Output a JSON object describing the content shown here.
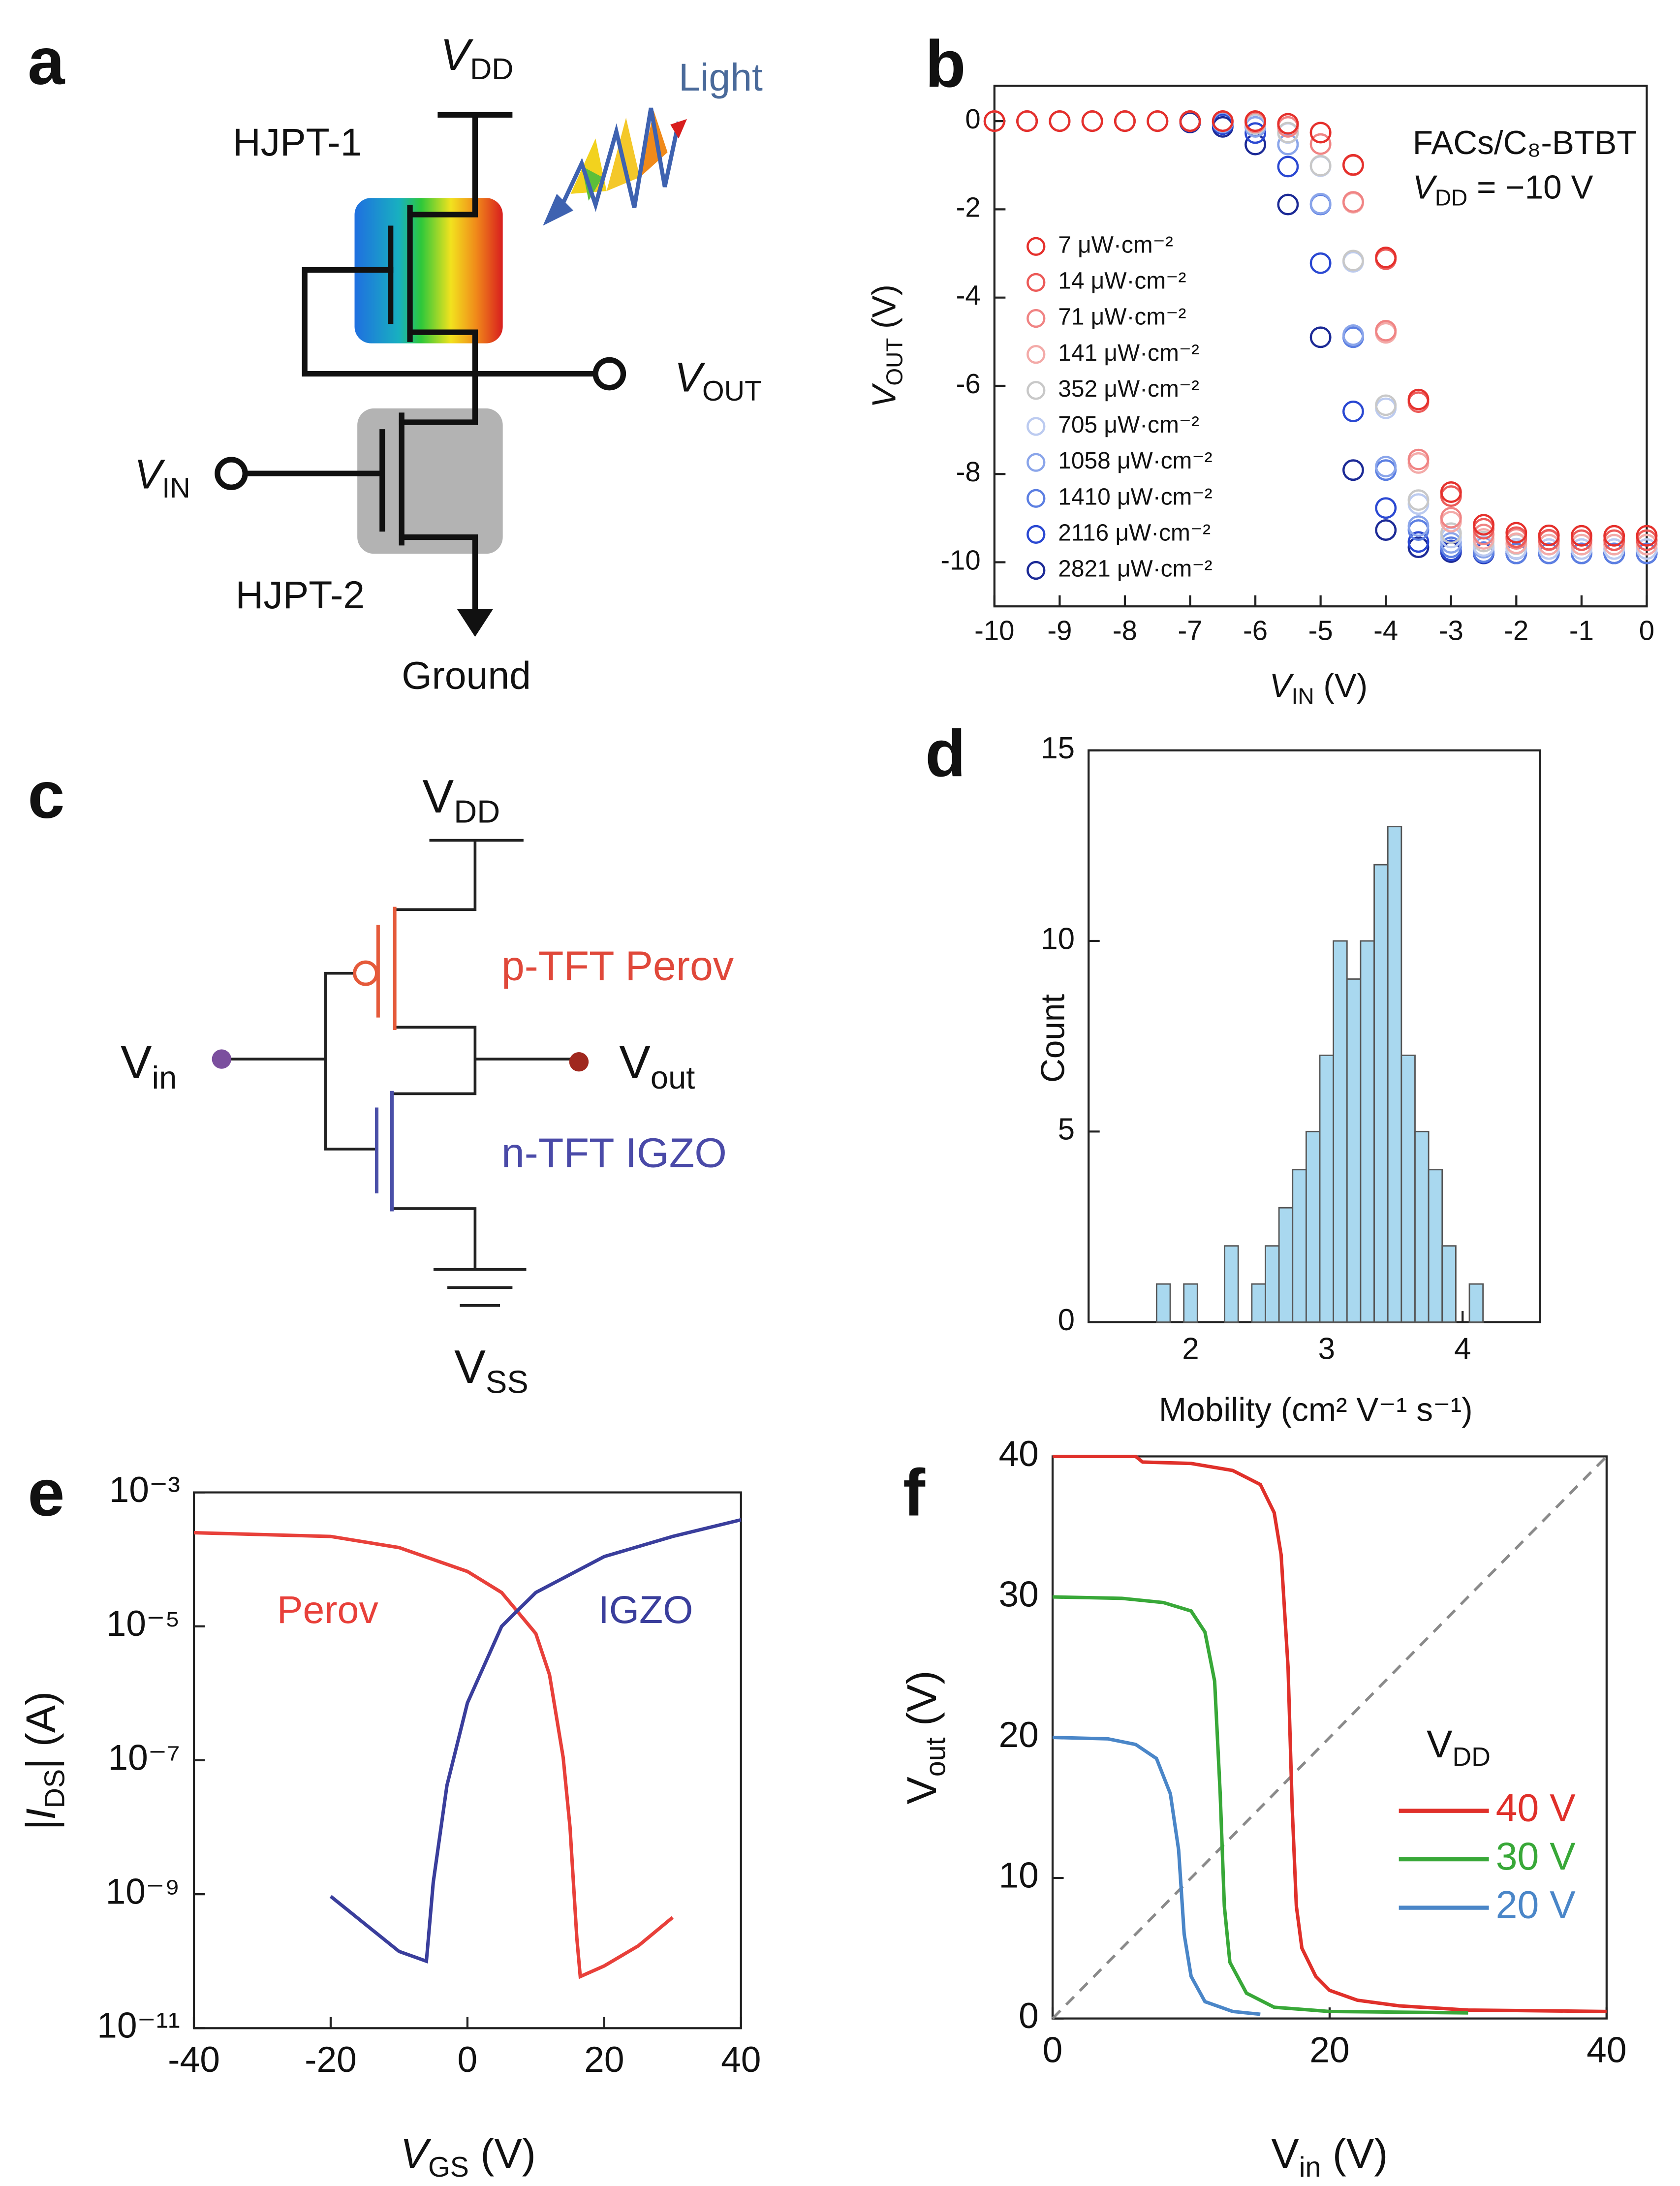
{
  "diagram_a": {
    "label": "a",
    "vdd": [
      "V",
      "DD"
    ],
    "light": "Light",
    "hjpt1": "HJPT-1",
    "vout": [
      "V",
      "OUT"
    ],
    "vin": [
      "V",
      "IN"
    ],
    "hjpt2": "HJPT-2",
    "ground": "Ground"
  },
  "diagram_c": {
    "label": "c",
    "vdd": [
      "V",
      "DD"
    ],
    "p_tft": "p-TFT Perov",
    "vin": [
      "V",
      "in"
    ],
    "vout": [
      "V",
      "out"
    ],
    "n_tft": "n-TFT IGZO",
    "vss": [
      "V",
      "SS"
    ]
  },
  "chart_data": [
    {
      "type": "scatter",
      "panel": "b",
      "xlabel": [
        "V",
        "IN",
        " (V)"
      ],
      "ylabel": [
        "V",
        "OUT",
        " (V)"
      ],
      "annotations": [
        "FACs/C₈-BTBT",
        [
          "V",
          "DD",
          " = −10 V"
        ]
      ],
      "xlim": [
        -10,
        0
      ],
      "xticks": [
        -10,
        -9,
        -8,
        -7,
        -6,
        -5,
        -4,
        -3,
        -2,
        -1,
        0
      ],
      "ylim": [
        -11,
        0.8
      ],
      "yticks": [
        0,
        -2,
        -4,
        -6,
        -8,
        -10
      ],
      "x": [
        -10,
        -9.5,
        -9,
        -8.5,
        -8,
        -7.5,
        -7,
        -6.5,
        -6,
        -5.5,
        -5,
        -4.5,
        -4,
        -3.5,
        -3,
        -2.5,
        -2,
        -1.5,
        -1,
        -0.5,
        0
      ],
      "series": [
        {
          "name": "7 μW·cm⁻²",
          "color": "#e5302c",
          "values": [
            0,
            0,
            0,
            0,
            0,
            0,
            0,
            0,
            0,
            -0.06,
            -0.26,
            -0.99,
            -3.09,
            -6.31,
            -8.41,
            -9.15,
            -9.33,
            -9.39,
            -9.4,
            -9.4,
            -9.4
          ]
        },
        {
          "name": "14 μW·cm⁻²",
          "color": "#ec5a58",
          "values": [
            0,
            0,
            0,
            0,
            0,
            0,
            0,
            0,
            0,
            -0.06,
            -0.26,
            -1.0,
            -3.13,
            -6.37,
            -8.5,
            -9.24,
            -9.43,
            -9.49,
            -9.5,
            -9.5,
            -9.5
          ]
        },
        {
          "name": "71 μW·cm⁻²",
          "color": "#f08484",
          "values": [
            0,
            0,
            0,
            0,
            0,
            0,
            0,
            0,
            -0.03,
            -0.13,
            -0.52,
            -1.83,
            -4.75,
            -7.67,
            -8.99,
            -9.37,
            -9.47,
            -9.5,
            -9.5,
            -9.5,
            -9.5
          ]
        },
        {
          "name": "141 μW·cm⁻²",
          "color": "#f3aaa8",
          "values": [
            0,
            0,
            0,
            0,
            0,
            0,
            0,
            0,
            -0.03,
            -0.13,
            -0.52,
            -1.85,
            -4.8,
            -7.75,
            -9.08,
            -9.47,
            -9.57,
            -9.6,
            -9.6,
            -9.6,
            -9.6
          ]
        },
        {
          "name": "352 μW·cm⁻²",
          "color": "#c8c8c8",
          "values": [
            0,
            0,
            0,
            0,
            0,
            0,
            0,
            0,
            -0.06,
            -0.26,
            -1.01,
            -3.16,
            -6.44,
            -8.59,
            -9.34,
            -9.53,
            -9.59,
            -9.6,
            -9.6,
            -9.6,
            -9.6
          ]
        },
        {
          "name": "705 μW·cm⁻²",
          "color": "#bccbf0",
          "values": [
            0,
            0,
            0,
            0,
            0,
            0,
            0,
            0,
            -0.07,
            -0.27,
            -1.02,
            -3.19,
            -6.51,
            -8.68,
            -9.44,
            -9.63,
            -9.69,
            -9.7,
            -9.7,
            -9.7,
            -9.7
          ]
        },
        {
          "name": "1058 μW·cm⁻²",
          "color": "#8aa5ea",
          "values": [
            0,
            0,
            0,
            0,
            0,
            0,
            0,
            -0.03,
            -0.13,
            -0.53,
            -1.87,
            -4.85,
            -7.83,
            -9.18,
            -9.56,
            -9.67,
            -9.7,
            -9.7,
            -9.7,
            -9.7,
            -9.7
          ]
        },
        {
          "name": "1410 μW·cm⁻²",
          "color": "#5c7fe2",
          "values": [
            0,
            0,
            0,
            0,
            0,
            0,
            0,
            -0.03,
            -0.13,
            -0.53,
            -1.89,
            -4.9,
            -7.91,
            -9.27,
            -9.66,
            -9.77,
            -9.8,
            -9.8,
            -9.8,
            -9.8,
            -9.8
          ]
        },
        {
          "name": "2116 μW·cm⁻²",
          "color": "#2a48d2",
          "values": [
            0,
            0,
            0,
            0,
            0,
            0,
            0,
            -0.07,
            -0.27,
            -1.03,
            -3.22,
            -6.58,
            -8.77,
            -9.54,
            -9.73,
            -9.79,
            -9.8,
            -9.8,
            -9.8,
            -9.8,
            -9.8
          ]
        },
        {
          "name": "2821 μW·cm⁻²",
          "color": "#1c2a96",
          "values": [
            0,
            0,
            0,
            0,
            0,
            0,
            -0.03,
            -0.13,
            -0.53,
            -1.89,
            -4.9,
            -7.91,
            -9.27,
            -9.66,
            -9.77,
            -9.8,
            -9.8,
            -9.8,
            -9.8,
            -9.8,
            -9.8
          ]
        }
      ]
    },
    {
      "type": "histogram",
      "panel": "d",
      "xlabel": "Mobility (cm² V⁻¹ s⁻¹)",
      "ylabel": "Count",
      "color": "#a9d8ef",
      "xlim": [
        1.25,
        4.57
      ],
      "xticks": [
        2,
        3,
        4
      ],
      "ylim": [
        0,
        15
      ],
      "yticks": [
        0,
        5,
        10,
        15
      ],
      "bins": [
        1.75,
        1.85,
        1.95,
        2.05,
        2.15,
        2.25,
        2.35,
        2.45,
        2.55,
        2.65,
        2.75,
        2.85,
        2.95,
        3.05,
        3.15,
        3.25,
        3.35,
        3.45,
        3.55,
        3.65,
        3.75,
        3.85,
        3.95,
        4.05,
        4.15
      ],
      "counts": [
        1,
        0,
        1,
        0,
        0,
        2,
        0,
        1,
        2,
        3,
        4,
        5,
        7,
        10,
        9,
        10,
        12,
        13,
        7,
        5,
        4,
        2,
        0,
        1
      ]
    },
    {
      "type": "line",
      "panel": "e",
      "xlabel": [
        "V",
        "GS",
        " (V)"
      ],
      "ylabel": [
        "|I",
        "DS",
        "| (A)"
      ],
      "log_y": true,
      "xlim": [
        -40,
        40
      ],
      "xticks": [
        -40,
        -20,
        0,
        20,
        40
      ],
      "ylim": [
        1e-11,
        0.001
      ],
      "yticks": [
        {
          "value": 1e-11,
          "label": "10⁻¹¹"
        },
        {
          "value": 1e-09,
          "label": "10⁻⁹"
        },
        {
          "value": 1e-07,
          "label": "10⁻⁷"
        },
        {
          "value": 1e-05,
          "label": "10⁻⁵"
        },
        {
          "value": 0.001,
          "label": "10⁻³"
        }
      ],
      "series": [
        {
          "name": "Perov",
          "color": "#e8403a",
          "x": [
            -40,
            -20,
            -10,
            0,
            5,
            10,
            12,
            14,
            15,
            16,
            16.5,
            20,
            25,
            30
          ],
          "values": [
            0.00025,
            0.00022,
            0.00015,
            6.6e-05,
            3.2e-05,
            7.8e-06,
            1.9e-06,
            1.1e-07,
            1e-08,
            2.2e-10,
            5.9e-11,
            8.5e-11,
            1.7e-10,
            4.5e-10
          ]
        },
        {
          "name": "IGZO",
          "color": "#3a3e9c",
          "x": [
            -20,
            -10,
            -6,
            -5,
            -3,
            0,
            5,
            10,
            20,
            30,
            40
          ],
          "values": [
            9.3e-10,
            1.4e-10,
            1e-10,
            1.5e-09,
            4.2e-08,
            7.2e-07,
            1e-05,
            3.2e-05,
            0.00011,
            0.00022,
            0.00039
          ]
        }
      ]
    },
    {
      "type": "line",
      "panel": "f",
      "xlabel": [
        "V",
        "in",
        " (V)"
      ],
      "ylabel": [
        "V",
        "out",
        " (V)"
      ],
      "legend_title": [
        "V",
        "DD"
      ],
      "xlim": [
        0,
        40
      ],
      "xticks": [
        0,
        20,
        40
      ],
      "ylim": [
        0,
        40
      ],
      "yticks": [
        0,
        10,
        20,
        30,
        40
      ],
      "diagonal": {
        "x": [
          0,
          40
        ],
        "values": [
          0,
          40
        ],
        "color": "#8a8a8a",
        "dashed": true
      },
      "series": [
        {
          "name": "40 V",
          "color": "#e0302a",
          "x": [
            0,
            6,
            6.5,
            10,
            13,
            15,
            16,
            16.5,
            17,
            17.3,
            17.6,
            18,
            19,
            20,
            22,
            25,
            30,
            40
          ],
          "values": [
            40,
            40,
            39.6,
            39.5,
            39,
            38,
            36,
            33,
            25,
            15,
            8,
            5,
            3,
            2,
            1.3,
            0.9,
            0.6,
            0.5
          ]
        },
        {
          "name": "30 V",
          "color": "#38a838",
          "x": [
            0,
            5,
            8,
            10,
            11,
            11.7,
            12.1,
            12.4,
            12.8,
            14,
            16,
            20,
            30
          ],
          "values": [
            30,
            29.9,
            29.6,
            29,
            27.5,
            24,
            16,
            8,
            4,
            1.8,
            0.8,
            0.5,
            0.4
          ]
        },
        {
          "name": "20 V",
          "color": "#4a86c8",
          "x": [
            0,
            4,
            6,
            7.5,
            8.5,
            9.1,
            9.5,
            10,
            11,
            13,
            15
          ],
          "values": [
            20,
            19.9,
            19.5,
            18.5,
            16,
            12,
            6,
            3,
            1.2,
            0.5,
            0.3
          ]
        }
      ]
    }
  ]
}
